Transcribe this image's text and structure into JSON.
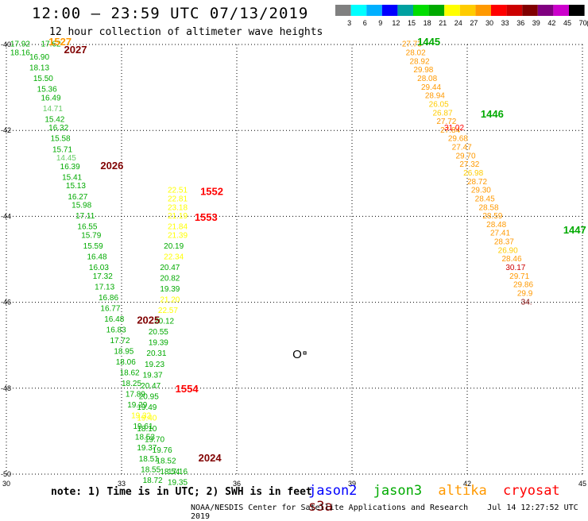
{
  "title": "12:00 – 23:59 UTC 07/13/2019",
  "subtitle": "12 hour collection of altimeter wave heights",
  "color_scale": {
    "colors": [
      "#808080",
      "#00ffff",
      "#00b0ff",
      "#0000ff",
      "#00a0a0",
      "#00dd00",
      "#00aa00",
      "#ffff00",
      "#ffcc00",
      "#ff9900",
      "#ff0000",
      "#cc0000",
      "#800000",
      "#800080",
      "#cc00cc",
      "#000000"
    ],
    "labels": [
      "3",
      "6",
      "9",
      "12",
      "15",
      "18",
      "21",
      "24",
      "27",
      "30",
      "33",
      "36",
      "39",
      "42",
      "45",
      "70"
    ],
    "unit": "(ft)"
  },
  "axes": {
    "lon_ticks": [
      "30",
      "33",
      "36",
      "39",
      "42",
      "45"
    ],
    "lat_ticks": [
      "-40",
      "-42",
      "-44",
      "-46",
      "-48",
      "-50"
    ]
  },
  "map_data": {
    "lon_range": [
      30,
      45
    ],
    "lat_range": [
      -50,
      -40
    ],
    "marker": "O",
    "passes": [
      {
        "time": "1527",
        "lon": 31.1,
        "lat": -40.02,
        "color": "#ff9900"
      },
      {
        "time": "2027",
        "lon": 31.5,
        "lat": -40.2,
        "color": "#800000"
      },
      {
        "time": "2026",
        "lon": 32.45,
        "lat": -42.9,
        "color": "#800000"
      },
      {
        "time": "2025",
        "lon": 33.4,
        "lat": -46.5,
        "color": "#800000"
      },
      {
        "time": "2024",
        "lon": 35.0,
        "lat": -49.7,
        "color": "#800000"
      },
      {
        "time": "1552",
        "lon": 35.05,
        "lat": -43.5,
        "color": "#ff0000"
      },
      {
        "time": "1553",
        "lon": 34.9,
        "lat": -44.1,
        "color": "#ff0000"
      },
      {
        "time": "1554",
        "lon": 34.4,
        "lat": -48.1,
        "color": "#ff0000"
      },
      {
        "time": "1445",
        "lon": 40.7,
        "lat": -40.02,
        "color": "#00aa00"
      },
      {
        "time": "1446",
        "lon": 42.35,
        "lat": -41.7,
        "color": "#00aa00"
      },
      {
        "time": "1447",
        "lon": 44.5,
        "lat": -44.4,
        "color": "#00aa00"
      }
    ],
    "tracks": [
      {
        "name": "jason3-west",
        "points": [
          [
            30.1,
            -40.05,
            "17.92",
            "#00aa00"
          ],
          [
            30.9,
            -40.05,
            "17.62",
            "#00aa00"
          ],
          [
            30.1,
            -40.25,
            "18.16",
            "#00aa00"
          ],
          [
            30.6,
            -40.35,
            "16.90",
            "#00aa00"
          ],
          [
            30.6,
            -40.6,
            "18.13",
            "#00aa00"
          ],
          [
            30.7,
            -40.85,
            "15.50",
            "#00aa00"
          ],
          [
            30.8,
            -41.1,
            "15.36",
            "#00aa00"
          ],
          [
            30.9,
            -41.3,
            "16.49",
            "#00aa00"
          ],
          [
            30.95,
            -41.55,
            "14.71",
            "#66cc66"
          ],
          [
            31.0,
            -41.8,
            "15.42",
            "#00aa00"
          ],
          [
            31.1,
            -42.0,
            "16.32",
            "#00aa00"
          ],
          [
            31.15,
            -42.25,
            "15.58",
            "#00aa00"
          ],
          [
            31.2,
            -42.5,
            "15.71",
            "#00aa00"
          ],
          [
            31.3,
            -42.7,
            "14.45",
            "#66cc66"
          ],
          [
            31.4,
            -42.9,
            "16.39",
            "#00aa00"
          ],
          [
            31.45,
            -43.15,
            "15.41",
            "#00aa00"
          ],
          [
            31.55,
            -43.35,
            "15.13",
            "#00aa00"
          ],
          [
            31.6,
            -43.6,
            "16.27",
            "#00aa00"
          ],
          [
            31.7,
            -43.8,
            "15.98",
            "#00aa00"
          ],
          [
            31.8,
            -44.05,
            "17.11",
            "#00aa00"
          ],
          [
            31.85,
            -44.3,
            "16.55",
            "#00aa00"
          ],
          [
            31.95,
            -44.5,
            "15.79",
            "#00aa00"
          ],
          [
            32.0,
            -44.75,
            "15.59",
            "#00aa00"
          ],
          [
            32.1,
            -45.0,
            "16.48",
            "#00aa00"
          ],
          [
            32.15,
            -45.25,
            "16.03",
            "#00aa00"
          ],
          [
            32.25,
            -45.45,
            "17.32",
            "#00aa00"
          ],
          [
            32.3,
            -45.7,
            "17.13",
            "#00aa00"
          ],
          [
            32.4,
            -45.95,
            "16.86",
            "#00aa00"
          ],
          [
            32.45,
            -46.2,
            "16.77",
            "#00aa00"
          ],
          [
            32.55,
            -46.45,
            "16.48",
            "#00aa00"
          ],
          [
            32.6,
            -46.7,
            "16.83",
            "#00aa00"
          ],
          [
            32.7,
            -46.95,
            "17.72",
            "#00aa00"
          ],
          [
            32.8,
            -47.2,
            "18.95",
            "#00aa00"
          ],
          [
            32.85,
            -47.45,
            "18.06",
            "#00aa00"
          ],
          [
            32.95,
            -47.7,
            "18.62",
            "#00aa00"
          ],
          [
            33.0,
            -47.95,
            "18.25",
            "#00aa00"
          ],
          [
            33.1,
            -48.2,
            "17.89",
            "#00aa00"
          ],
          [
            33.15,
            -48.45,
            "19.29",
            "#00aa00"
          ],
          [
            33.25,
            -48.7,
            "19.32",
            "#ffff00"
          ],
          [
            33.3,
            -48.95,
            "19.61",
            "#00aa00"
          ],
          [
            33.35,
            -49.2,
            "18.53",
            "#00aa00"
          ],
          [
            33.4,
            -49.45,
            "19.37",
            "#00aa00"
          ],
          [
            33.45,
            -49.7,
            "18.51",
            "#00aa00"
          ],
          [
            33.5,
            -49.95,
            "18.55",
            "#00aa00"
          ],
          [
            33.55,
            -50.2,
            "18.72",
            "#00aa00"
          ]
        ]
      },
      {
        "name": "altika-mid",
        "points": [
          [
            34.2,
            -43.45,
            "22.51",
            "#ffff00"
          ],
          [
            34.2,
            -43.65,
            "22.81",
            "#ffff00"
          ],
          [
            34.2,
            -43.85,
            "23.18",
            "#ffff00"
          ],
          [
            34.2,
            -44.05,
            "21.19",
            "#ffff00"
          ],
          [
            34.2,
            -44.3,
            "21.84",
            "#ffff00"
          ],
          [
            34.2,
            -44.5,
            "21.39",
            "#ffff00"
          ],
          [
            34.1,
            -44.75,
            "20.19",
            "#00aa00"
          ],
          [
            34.1,
            -45.0,
            "22.34",
            "#ffff00"
          ],
          [
            34.0,
            -45.25,
            "20.47",
            "#00aa00"
          ],
          [
            34.0,
            -45.5,
            "20.82",
            "#00aa00"
          ],
          [
            34.0,
            -45.75,
            "19.39",
            "#00aa00"
          ],
          [
            34.0,
            -46.0,
            "21.20",
            "#ffff00"
          ],
          [
            33.95,
            -46.25,
            "22.57",
            "#ffff00"
          ],
          [
            33.85,
            -46.5,
            "20.12",
            "#00aa00"
          ],
          [
            33.7,
            -46.75,
            "20.55",
            "#00aa00"
          ],
          [
            33.7,
            -47.0,
            "19.39",
            "#00aa00"
          ],
          [
            33.65,
            -47.25,
            "20.31",
            "#00aa00"
          ],
          [
            33.6,
            -47.5,
            "19.23",
            "#00aa00"
          ],
          [
            33.55,
            -47.75,
            "19.37",
            "#00aa00"
          ],
          [
            33.5,
            -48.0,
            "20.47",
            "#00aa00"
          ],
          [
            33.45,
            -48.25,
            "20.95",
            "#00aa00"
          ],
          [
            33.4,
            -48.5,
            "19.49",
            "#00aa00"
          ],
          [
            33.4,
            -48.75,
            "19.40",
            "#ffff00"
          ],
          [
            33.4,
            -49.0,
            "18.10",
            "#00aa00"
          ],
          [
            33.6,
            -49.25,
            "19.70",
            "#00aa00"
          ],
          [
            33.8,
            -49.5,
            "19.76",
            "#00aa00"
          ],
          [
            33.9,
            -49.75,
            "18.52",
            "#00aa00"
          ],
          [
            34.0,
            -50.0,
            "18.54",
            "#00aa00"
          ],
          [
            34.2,
            -50.0,
            "17.16",
            "#00aa00"
          ],
          [
            34.2,
            -50.25,
            "19.35",
            "#00aa00"
          ]
        ]
      },
      {
        "name": "altika-east",
        "points": [
          [
            40.3,
            -40.05,
            "27.73",
            "#ff9900"
          ],
          [
            40.4,
            -40.25,
            "28.02",
            "#ff9900"
          ],
          [
            40.5,
            -40.45,
            "28.92",
            "#ff9900"
          ],
          [
            40.6,
            -40.65,
            "29.98",
            "#ff9900"
          ],
          [
            40.7,
            -40.85,
            "28.08",
            "#ff9900"
          ],
          [
            40.8,
            -41.05,
            "29.44",
            "#ff9900"
          ],
          [
            40.9,
            -41.25,
            "28.94",
            "#ff9900"
          ],
          [
            41.0,
            -41.45,
            "26.05",
            "#ffcc00"
          ],
          [
            41.1,
            -41.65,
            "26.87",
            "#ffcc00"
          ],
          [
            41.2,
            -41.85,
            "27.72",
            "#ff9900"
          ],
          [
            41.3,
            -42.05,
            "27.84",
            "#ff9900"
          ],
          [
            41.4,
            -42.0,
            "31.02",
            "#ff0000"
          ],
          [
            41.5,
            -42.25,
            "29.68",
            "#ff9900"
          ],
          [
            41.6,
            -42.45,
            "27.47",
            "#ff9900"
          ],
          [
            41.7,
            -42.65,
            "29.70",
            "#ff9900"
          ],
          [
            41.8,
            -42.85,
            "27.32",
            "#ff9900"
          ],
          [
            41.9,
            -43.05,
            "26.98",
            "#ffcc00"
          ],
          [
            42.0,
            -43.25,
            "28.72",
            "#ff9900"
          ],
          [
            42.1,
            -43.45,
            "29.30",
            "#ff9900"
          ],
          [
            42.2,
            -43.65,
            "28.45",
            "#ff9900"
          ],
          [
            42.3,
            -43.85,
            "28.58",
            "#ff9900"
          ],
          [
            42.4,
            -44.05,
            "28.59",
            "#ff9900"
          ],
          [
            42.5,
            -44.25,
            "28.48",
            "#ff9900"
          ],
          [
            42.6,
            -44.45,
            "27.41",
            "#ff9900"
          ],
          [
            42.7,
            -44.65,
            "28.37",
            "#ff9900"
          ],
          [
            42.8,
            -44.85,
            "26.90",
            "#ffcc00"
          ],
          [
            42.9,
            -45.05,
            "28.46",
            "#ff9900"
          ],
          [
            43.0,
            -45.25,
            "30.17",
            "#cc0000"
          ],
          [
            43.1,
            -45.45,
            "29.71",
            "#ff9900"
          ],
          [
            43.2,
            -45.65,
            "29.86",
            "#ff9900"
          ],
          [
            43.3,
            -45.85,
            "29.9",
            "#ff9900"
          ],
          [
            43.4,
            -46.05,
            "34.",
            "#800000"
          ]
        ]
      }
    ]
  },
  "note": "note: 1) Time is in UTC; 2) SWH is in feet",
  "legend": [
    {
      "label": "jason2",
      "color": "#0000ff"
    },
    {
      "label": "jason3",
      "color": "#00aa00"
    },
    {
      "label": "altika",
      "color": "#ff9900"
    },
    {
      "label": "cryosat",
      "color": "#ff0000"
    },
    {
      "label": "s3a",
      "color": "#800000"
    }
  ],
  "footer": {
    "agency": "NOAA/NESDIS Center for Satellite Applications and Research",
    "timestamp": "Jul 14 12:27:52 UTC 2019"
  }
}
